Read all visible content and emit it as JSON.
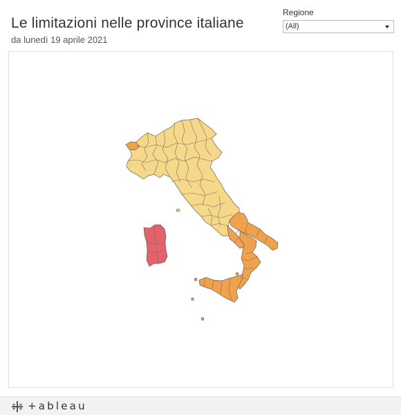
{
  "header": {
    "title": "Le limitazioni nelle province italiane",
    "subtitle": "da lunedì 19 aprile 2021"
  },
  "filter": {
    "label": "Regione",
    "selected": "(All)"
  },
  "footer": {
    "brand": "+ableau",
    "logo_icon": "tableau-cross-icon"
  },
  "map": {
    "colors": {
      "zona_gialla": "#f6d88a",
      "zona_arancione": "#f0a14e",
      "zona_rossa": "#e2636b",
      "border": "#6a6050"
    },
    "areas": [
      {
        "id": "nord-centro",
        "zone": "zona_gialla"
      },
      {
        "id": "aosta",
        "zone": "zona_arancione"
      },
      {
        "id": "puglia",
        "zone": "zona_arancione"
      },
      {
        "id": "basilicata-calabria",
        "zone": "zona_arancione"
      },
      {
        "id": "campania",
        "zone": "zona_arancione"
      },
      {
        "id": "sicilia",
        "zone": "zona_arancione"
      },
      {
        "id": "sardegna",
        "zone": "zona_rossa"
      }
    ]
  }
}
